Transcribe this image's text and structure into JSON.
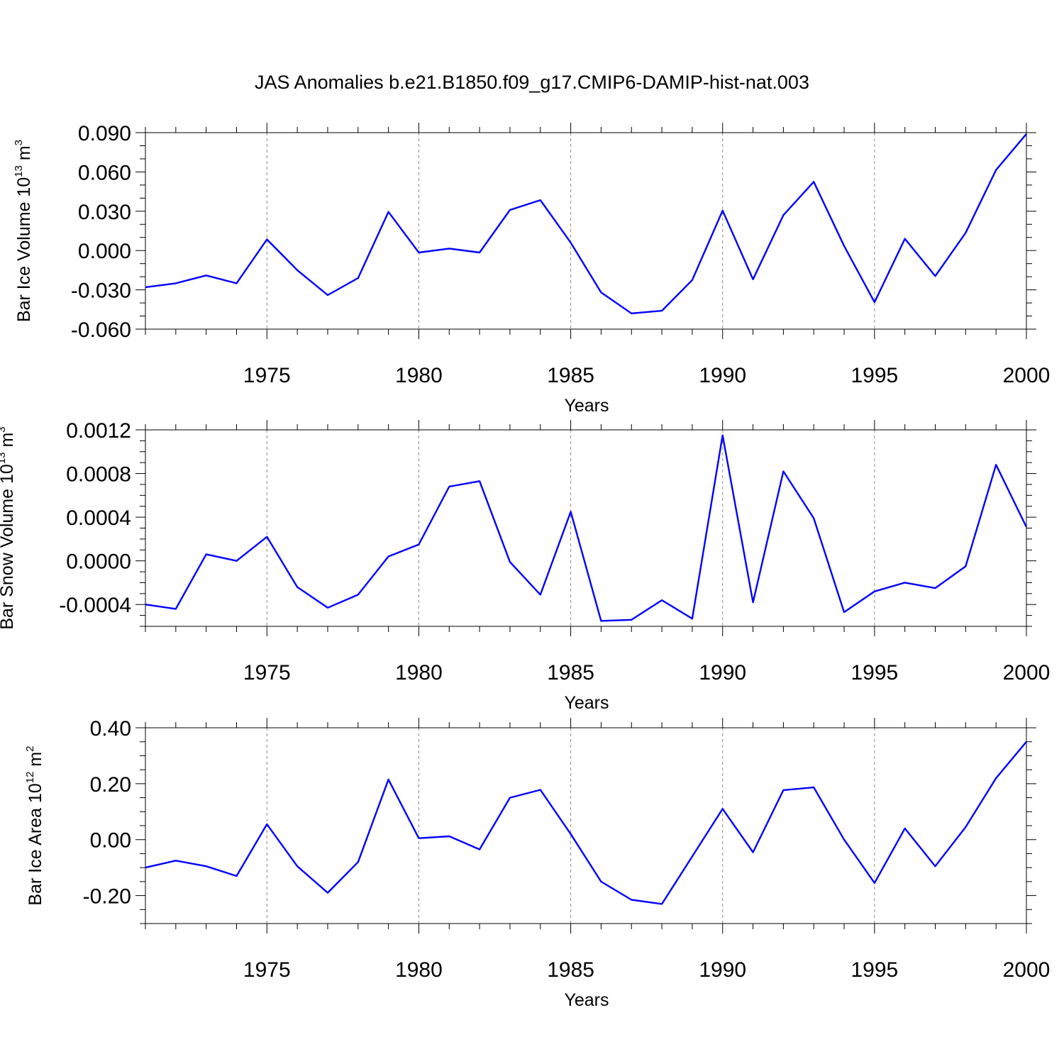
{
  "title": "JAS Anomalies b.e21.B1850.f09_g17.CMIP6-DAMIP-hist-nat.003",
  "line_color": "#0000ff",
  "chart_data": [
    {
      "type": "line",
      "ylabel": "Bar Ice Volume 10",
      "ylabel_sup": "13",
      "ylabel_unit": " m",
      "ylabel_unit_sup": "3",
      "xlabel": "Years",
      "xlim": [
        1971,
        2000
      ],
      "ylim": [
        -0.06,
        0.09
      ],
      "x_major_ticks": [
        1975,
        1980,
        1985,
        1990,
        1995,
        2000
      ],
      "x_tick_labels": [
        "1975",
        "1980",
        "1985",
        "1990",
        "1995",
        "2000"
      ],
      "y_major_ticks": [
        -0.06,
        -0.03,
        0.0,
        0.03,
        0.06,
        0.09
      ],
      "y_tick_labels": [
        "-0.060",
        "-0.030",
        "0.000",
        "0.030",
        "0.060",
        "0.090"
      ],
      "y_minor_step": 0.01,
      "grid": "vertical dashed at major x ticks",
      "x": [
        1971,
        1972,
        1973,
        1974,
        1975,
        1976,
        1977,
        1978,
        1979,
        1980,
        1981,
        1982,
        1983,
        1984,
        1985,
        1986,
        1987,
        1988,
        1989,
        1990,
        1991,
        1992,
        1993,
        1994,
        1995,
        1996,
        1997,
        1998,
        1999,
        2000
      ],
      "y": [
        -0.028,
        -0.025,
        -0.019,
        -0.025,
        0.0085,
        -0.015,
        -0.034,
        -0.021,
        0.0295,
        -0.0015,
        0.0015,
        -0.0015,
        0.031,
        0.0385,
        0.006,
        -0.032,
        -0.048,
        -0.046,
        -0.0225,
        0.0305,
        -0.022,
        0.027,
        0.0525,
        0.0035,
        -0.0395,
        0.009,
        -0.0195,
        0.0135,
        0.0615,
        0.089
      ]
    },
    {
      "type": "line",
      "ylabel": "Bar Snow Volume 10",
      "ylabel_sup": "13",
      "ylabel_unit": " m",
      "ylabel_unit_sup": "3",
      "xlabel": "Years",
      "xlim": [
        1971,
        2000
      ],
      "ylim": [
        -0.0006,
        0.0012
      ],
      "x_major_ticks": [
        1975,
        1980,
        1985,
        1990,
        1995,
        2000
      ],
      "x_tick_labels": [
        "1975",
        "1980",
        "1985",
        "1990",
        "1995",
        "2000"
      ],
      "y_major_ticks": [
        -0.0004,
        0.0,
        0.0004,
        0.0008,
        0.0012
      ],
      "y_tick_labels": [
        "-0.0004",
        "0.0000",
        "0.0004",
        "0.0008",
        "0.0012"
      ],
      "y_minor_step": 0.0001,
      "grid": "vertical dashed at major x ticks",
      "x": [
        1971,
        1972,
        1973,
        1974,
        1975,
        1976,
        1977,
        1978,
        1979,
        1980,
        1981,
        1982,
        1983,
        1984,
        1985,
        1986,
        1987,
        1988,
        1989,
        1990,
        1991,
        1992,
        1993,
        1994,
        1995,
        1996,
        1997,
        1998,
        1999,
        2000
      ],
      "y": [
        -0.0004,
        -0.00044,
        6e-05,
        0.0,
        0.00022,
        -0.00024,
        -0.00043,
        -0.00031,
        4e-05,
        0.00015,
        0.00068,
        0.00073,
        -1e-05,
        -0.00031,
        0.00045,
        -0.00055,
        -0.00054,
        -0.00036,
        -0.00053,
        0.00115,
        -0.00038,
        0.00082,
        0.00039,
        -0.00047,
        -0.00028,
        -0.0002,
        -0.00025,
        -5e-05,
        0.00088,
        0.00031
      ]
    },
    {
      "type": "line",
      "ylabel": "Bar Ice Area 10",
      "ylabel_sup": "12",
      "ylabel_unit": " m",
      "ylabel_unit_sup": "2",
      "xlabel": "Years",
      "xlim": [
        1971,
        2000
      ],
      "ylim": [
        -0.3,
        0.4
      ],
      "x_major_ticks": [
        1975,
        1980,
        1985,
        1990,
        1995,
        2000
      ],
      "x_tick_labels": [
        "1975",
        "1980",
        "1985",
        "1990",
        "1995",
        "2000"
      ],
      "y_major_ticks": [
        -0.2,
        0.0,
        0.2,
        0.4
      ],
      "y_tick_labels": [
        "-0.20",
        "0.00",
        "0.20",
        "0.40"
      ],
      "y_minor_step": 0.05,
      "grid": "vertical dashed at major x ticks",
      "x": [
        1971,
        1972,
        1973,
        1974,
        1975,
        1976,
        1977,
        1978,
        1979,
        1980,
        1981,
        1982,
        1983,
        1984,
        1985,
        1986,
        1987,
        1988,
        1989,
        1990,
        1991,
        1992,
        1993,
        1994,
        1995,
        1996,
        1997,
        1998,
        1999,
        2000
      ],
      "y": [
        -0.1,
        -0.075,
        -0.095,
        -0.13,
        0.055,
        -0.095,
        -0.19,
        -0.08,
        0.215,
        0.005,
        0.012,
        -0.035,
        0.15,
        0.178,
        0.02,
        -0.15,
        -0.215,
        -0.23,
        -0.06,
        0.11,
        -0.045,
        0.177,
        0.187,
        0.0,
        -0.155,
        0.04,
        -0.095,
        0.045,
        0.22,
        0.35
      ]
    }
  ]
}
